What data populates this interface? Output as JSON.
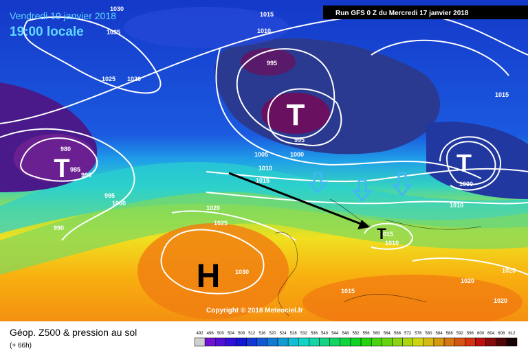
{
  "header": {
    "date": "Vendredi 19 janvier 2018",
    "time": "19:00 locale",
    "run": "Run GFS 0 Z du Mercredi 17 janvier 2018"
  },
  "copyright": "Copyright © 2018 Meteociel.fr",
  "footer": {
    "title": "Géop. Z500 & pression au sol",
    "lead": "(+ 66h)"
  },
  "isobar_labels": [
    1030,
    1035,
    1025,
    1020,
    1015,
    1010,
    995,
    1015,
    995,
    1000,
    1005,
    1010,
    1015,
    980,
    985,
    990,
    995,
    1000,
    990,
    1020,
    1025,
    1030,
    1000,
    1010,
    1015,
    1010,
    1020,
    1025,
    1015,
    1020
  ],
  "centers": [
    "T",
    "T",
    "T",
    "T",
    "H"
  ],
  "scale": [
    492,
    496,
    500,
    504,
    508,
    512,
    516,
    520,
    524,
    528,
    532,
    536,
    540,
    544,
    548,
    552,
    556,
    560,
    564,
    568,
    572,
    576,
    580,
    584,
    588,
    592,
    596,
    600,
    604,
    608,
    612
  ]
}
